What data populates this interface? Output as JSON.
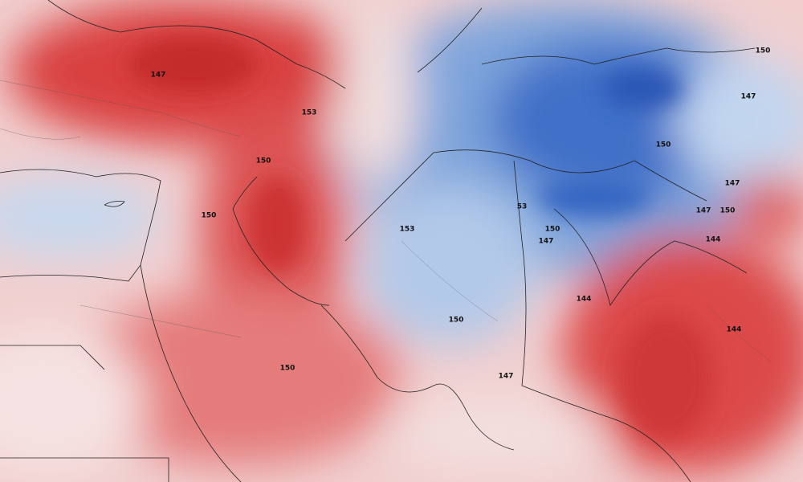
{
  "map": {
    "contour_labels": [
      "147",
      "153",
      "150",
      "150",
      "153",
      "53",
      "150",
      "147",
      "150",
      "150",
      "147",
      "147",
      "147",
      "150",
      "144",
      "144",
      "150",
      "144",
      "150",
      "147"
    ]
  }
}
